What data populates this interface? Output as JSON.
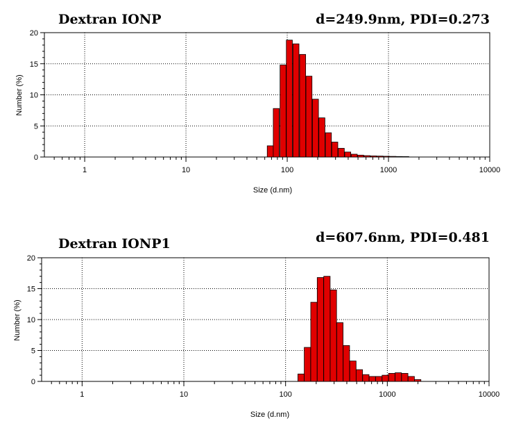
{
  "chart_data": [
    {
      "type": "bar",
      "title": "Dextran IONP",
      "annotation": "d=249.9nm, PDI=0.273",
      "xlabel": "Size (d.nm)",
      "ylabel": "Number (%)",
      "xscale": "log",
      "xlim": [
        0.4,
        10000
      ],
      "ylim": [
        0,
        20
      ],
      "xticks": [
        "1",
        "10",
        "100",
        "1000",
        "10000"
      ],
      "yticks": [
        "0",
        "5",
        "10",
        "15",
        "20"
      ],
      "grid": "dotted",
      "bar_color": "#e00000",
      "x": [
        68,
        78,
        91,
        105,
        122,
        142,
        164,
        190,
        220,
        255,
        295,
        342,
        396,
        459,
        531,
        615,
        712,
        825,
        955,
        1106,
        1281,
        1484
      ],
      "values": [
        1.8,
        7.8,
        14.8,
        18.8,
        18.2,
        16.5,
        13.0,
        9.3,
        6.3,
        3.9,
        2.4,
        1.4,
        0.8,
        0.45,
        0.3,
        0.22,
        0.18,
        0.15,
        0.12,
        0.1,
        0.08,
        0.06
      ]
    },
    {
      "type": "bar",
      "title": "Dextran IONP1",
      "annotation": "d=607.6nm, PDI=0.481",
      "xlabel": "Size (d.nm)",
      "ylabel": "Number (%)",
      "xscale": "log",
      "xlim": [
        0.4,
        10000
      ],
      "ylim": [
        0,
        20
      ],
      "xticks": [
        "1",
        "10",
        "100",
        "1000",
        "10000"
      ],
      "yticks": [
        "0",
        "5",
        "10",
        "15",
        "20"
      ],
      "grid": "dotted",
      "bar_color": "#e00000",
      "x": [
        142,
        164,
        190,
        220,
        255,
        295,
        342,
        396,
        459,
        531,
        615,
        712,
        825,
        955,
        1106,
        1281,
        1484,
        1718,
        1990
      ],
      "values": [
        1.2,
        5.5,
        12.8,
        16.8,
        17.0,
        14.8,
        9.5,
        5.8,
        3.3,
        1.9,
        1.1,
        0.8,
        0.8,
        1.0,
        1.3,
        1.4,
        1.3,
        0.8,
        0.3
      ]
    }
  ]
}
